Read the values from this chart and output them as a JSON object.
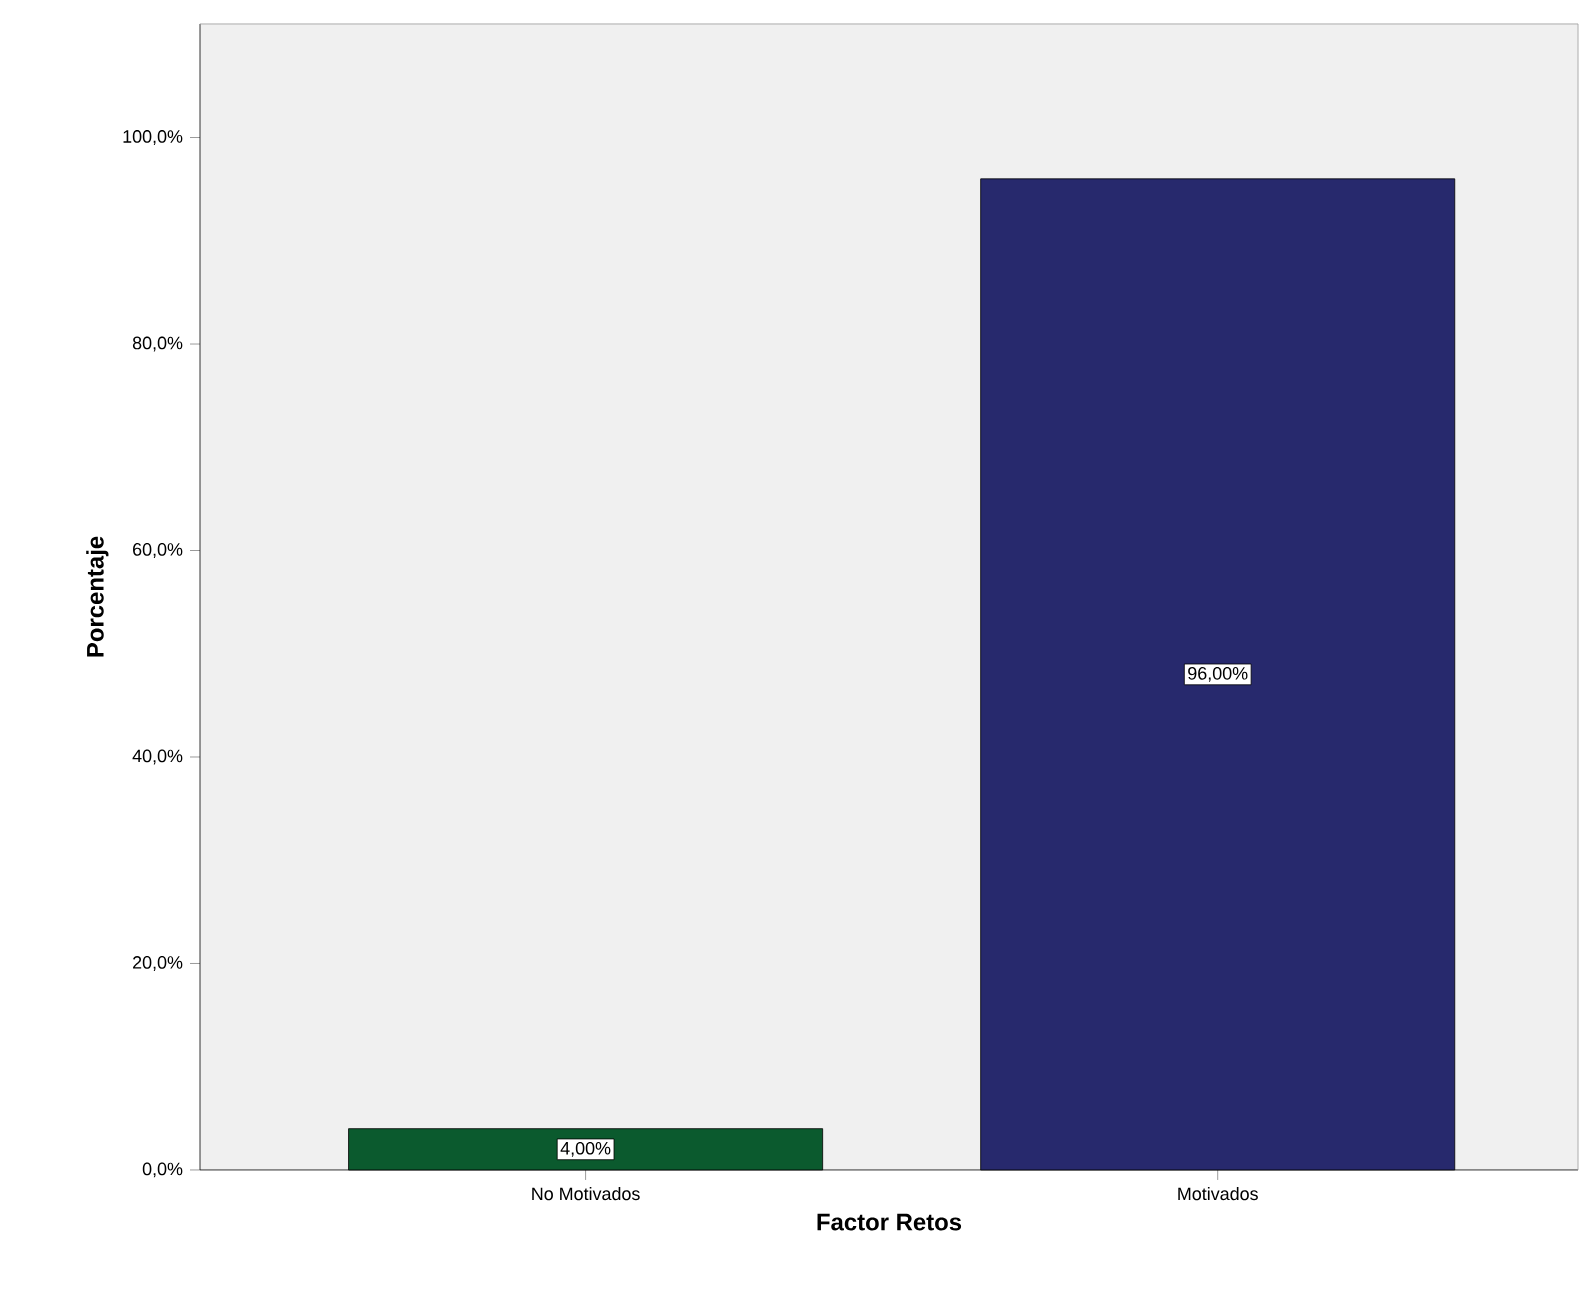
{
  "chart_data": {
    "type": "bar",
    "xlabel": "Factor Retos",
    "ylabel": "Porcentaje",
    "categories": [
      "No Motivados",
      "Motivados"
    ],
    "values": [
      4.0,
      96.0
    ],
    "colors": [
      "#0b5a2e",
      "#27296d"
    ],
    "value_labels": [
      "4,00%",
      "96,00%"
    ],
    "ylim": [
      0,
      111
    ],
    "yticks": [
      {
        "value": 0,
        "label": "0,0%"
      },
      {
        "value": 20,
        "label": "20,0%"
      },
      {
        "value": 40,
        "label": "40,0%"
      },
      {
        "value": 60,
        "label": "60,0%"
      },
      {
        "value": 80,
        "label": "80,0%"
      },
      {
        "value": 100,
        "label": "100,0%"
      }
    ]
  }
}
